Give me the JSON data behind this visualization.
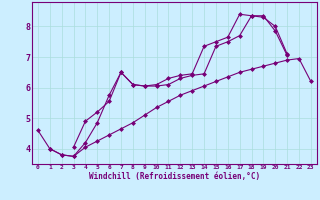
{
  "xlabel": "Windchill (Refroidissement éolien,°C)",
  "background_color": "#cceeff",
  "line_color": "#770077",
  "marker": "D",
  "markersize": 2,
  "linewidth": 0.8,
  "xlim": [
    -0.5,
    23.5
  ],
  "ylim": [
    3.5,
    8.8
  ],
  "xticks": [
    0,
    1,
    2,
    3,
    4,
    5,
    6,
    7,
    8,
    9,
    10,
    11,
    12,
    13,
    14,
    15,
    16,
    17,
    18,
    19,
    20,
    21,
    22,
    23
  ],
  "yticks": [
    4,
    5,
    6,
    7,
    8
  ],
  "grid_color": "#aadddd",
  "series": [
    {
      "x": [
        1,
        2,
        3,
        4,
        5,
        6,
        7,
        8,
        9,
        10,
        11,
        12,
        13,
        14,
        15,
        16,
        17,
        18,
        19,
        20,
        21,
        22,
        23
      ],
      "y": [
        4.0,
        3.8,
        3.75,
        4.05,
        4.25,
        4.45,
        4.65,
        4.85,
        5.1,
        5.35,
        5.55,
        5.75,
        5.9,
        6.05,
        6.2,
        6.35,
        6.5,
        6.6,
        6.7,
        6.8,
        6.9,
        6.95,
        6.2
      ]
    },
    {
      "x": [
        0,
        1,
        2,
        3,
        4,
        5,
        6,
        7,
        8,
        9,
        10,
        11,
        12,
        13,
        14,
        15,
        16,
        17,
        18,
        19,
        20,
        21
      ],
      "y": [
        4.6,
        4.0,
        3.8,
        3.75,
        4.2,
        4.85,
        5.75,
        6.5,
        6.1,
        6.05,
        6.05,
        6.1,
        6.3,
        6.4,
        6.45,
        7.35,
        7.5,
        7.7,
        8.35,
        8.3,
        8.0,
        7.1
      ]
    },
    {
      "x": [
        3,
        4,
        5,
        6,
        7,
        8,
        9,
        10,
        11,
        12,
        13,
        14,
        15,
        16,
        17,
        18,
        19,
        20,
        21
      ],
      "y": [
        4.05,
        4.9,
        5.2,
        5.55,
        6.5,
        6.1,
        6.05,
        6.1,
        6.3,
        6.4,
        6.45,
        7.35,
        7.5,
        7.65,
        8.4,
        8.35,
        8.35,
        7.85,
        7.05
      ]
    }
  ]
}
